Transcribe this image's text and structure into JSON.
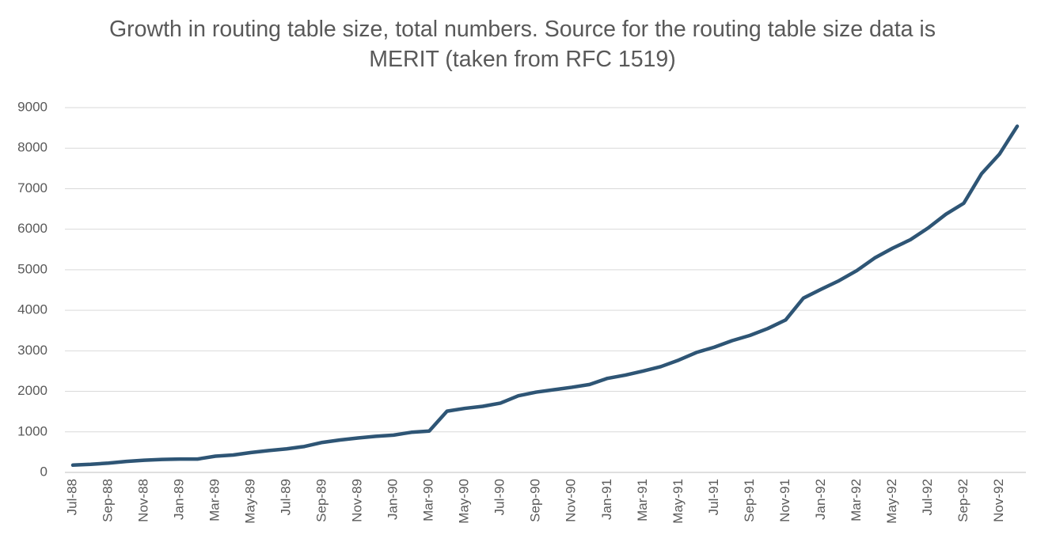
{
  "chart_data": {
    "type": "line",
    "title": "Growth in routing table size, total numbers. Source for the routing table size data is MERIT (taken from RFC 1519)",
    "categories": [
      "Jul-88",
      null,
      "Sep-88",
      null,
      "Nov-88",
      null,
      "Jan-89",
      null,
      "Mar-89",
      null,
      "May-89",
      null,
      "Jul-89",
      null,
      "Sep-89",
      null,
      "Nov-89",
      null,
      "Jan-90",
      null,
      "Mar-90",
      null,
      "May-90",
      null,
      "Jul-90",
      null,
      "Sep-90",
      null,
      "Nov-90",
      null,
      "Jan-91",
      null,
      "Mar-91",
      null,
      "May-91",
      null,
      "Jul-91",
      null,
      "Sep-91",
      null,
      "Nov-91",
      null,
      "Jan-92",
      null,
      "Mar-92",
      null,
      "May-92",
      null,
      "Jul-92",
      null,
      "Sep-92",
      null,
      "Nov-92",
      null
    ],
    "series": [
      {
        "name": "Routing table size",
        "color": "#2e5575",
        "values": [
          180,
          200,
          230,
          270,
          300,
          320,
          330,
          330,
          400,
          430,
          490,
          540,
          580,
          640,
          740,
          800,
          850,
          890,
          920,
          990,
          1020,
          1510,
          1580,
          1630,
          1710,
          1890,
          1980,
          2040,
          2100,
          2170,
          2320,
          2400,
          2500,
          2610,
          2770,
          2960,
          3090,
          3250,
          3380,
          3550,
          3760,
          4300,
          4520,
          4730,
          4980,
          5290,
          5530,
          5740,
          6030,
          6370,
          6640,
          7370,
          7850,
          8540
        ]
      }
    ],
    "ylim": [
      0,
      9000
    ],
    "yticks": [
      0,
      1000,
      2000,
      3000,
      4000,
      5000,
      6000,
      7000,
      8000,
      9000
    ],
    "grid": true
  }
}
